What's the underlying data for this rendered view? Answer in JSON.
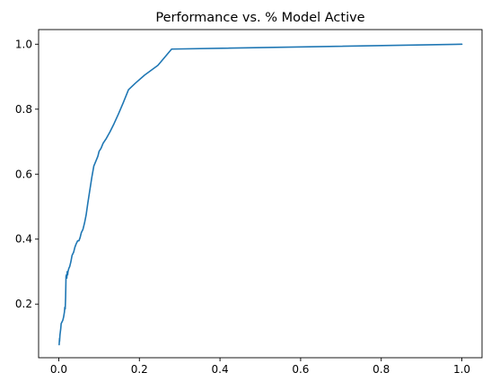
{
  "chart_data": {
    "type": "line",
    "title": "Performance vs. % Model Active",
    "xlabel": "",
    "ylabel": "",
    "xlim": [
      -0.05,
      1.05
    ],
    "ylim": [
      0.035,
      1.045
    ],
    "grid": false,
    "xticks": [
      0.0,
      0.2,
      0.4,
      0.6,
      0.8,
      1.0
    ],
    "xtick_labels": [
      "0.0",
      "0.2",
      "0.4",
      "0.6",
      "0.8",
      "1.0"
    ],
    "yticks": [
      0.2,
      0.4,
      0.6,
      0.8,
      1.0
    ],
    "ytick_labels": [
      "0.2",
      "0.4",
      "0.6",
      "0.8",
      "1.0"
    ],
    "series": [
      {
        "color": "#1f77b4",
        "x": [
          0.001,
          0.002,
          0.002,
          0.003,
          0.004,
          0.005,
          0.006,
          0.008,
          0.01,
          0.012,
          0.014,
          0.015,
          0.016,
          0.017,
          0.018,
          0.019,
          0.02,
          0.021,
          0.022,
          0.023,
          0.025,
          0.027,
          0.03,
          0.033,
          0.037,
          0.04,
          0.043,
          0.047,
          0.05,
          0.053,
          0.056,
          0.06,
          0.064,
          0.068,
          0.072,
          0.077,
          0.082,
          0.087,
          0.092,
          0.097,
          0.1,
          0.105,
          0.11,
          0.118,
          0.127,
          0.137,
          0.148,
          0.16,
          0.173,
          0.19,
          0.213,
          0.246,
          0.28,
          1.0
        ],
        "y": [
          0.075,
          0.095,
          0.085,
          0.105,
          0.115,
          0.125,
          0.14,
          0.145,
          0.15,
          0.16,
          0.175,
          0.19,
          0.185,
          0.22,
          0.285,
          0.29,
          0.28,
          0.3,
          0.29,
          0.3,
          0.31,
          0.315,
          0.33,
          0.35,
          0.36,
          0.375,
          0.385,
          0.395,
          0.395,
          0.405,
          0.42,
          0.43,
          0.45,
          0.475,
          0.51,
          0.55,
          0.59,
          0.625,
          0.64,
          0.655,
          0.67,
          0.68,
          0.695,
          0.71,
          0.73,
          0.755,
          0.785,
          0.82,
          0.86,
          0.88,
          0.905,
          0.935,
          0.985,
          1.0
        ]
      }
    ]
  }
}
